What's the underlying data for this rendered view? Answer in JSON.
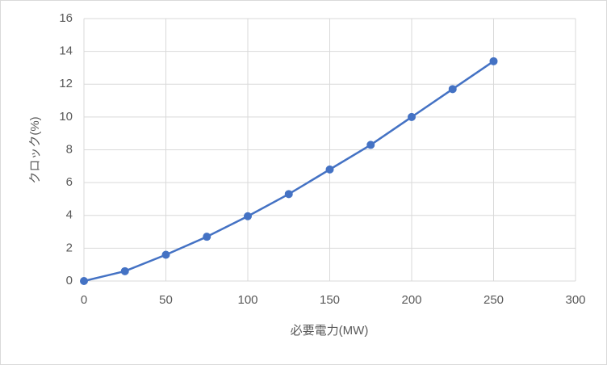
{
  "chart_data": {
    "type": "scatter",
    "x_label": "必要電力(MW)",
    "y_label": "クロック(%)",
    "series": [
      {
        "name": "クロック",
        "color": "#4472c4",
        "x": [
          0,
          25,
          50,
          75,
          100,
          125,
          150,
          175,
          200,
          225,
          250
        ],
        "values": [
          0,
          0.6,
          1.6,
          2.7,
          3.95,
          5.3,
          6.8,
          8.3,
          10.0,
          11.7,
          13.4
        ]
      }
    ],
    "xlim": [
      0,
      300
    ],
    "xticks": [
      0,
      50,
      100,
      150,
      200,
      250,
      300
    ],
    "ylim": [
      0,
      16
    ],
    "yticks": [
      0,
      2,
      4,
      6,
      8,
      10,
      12,
      14,
      16
    ],
    "grid": true
  }
}
